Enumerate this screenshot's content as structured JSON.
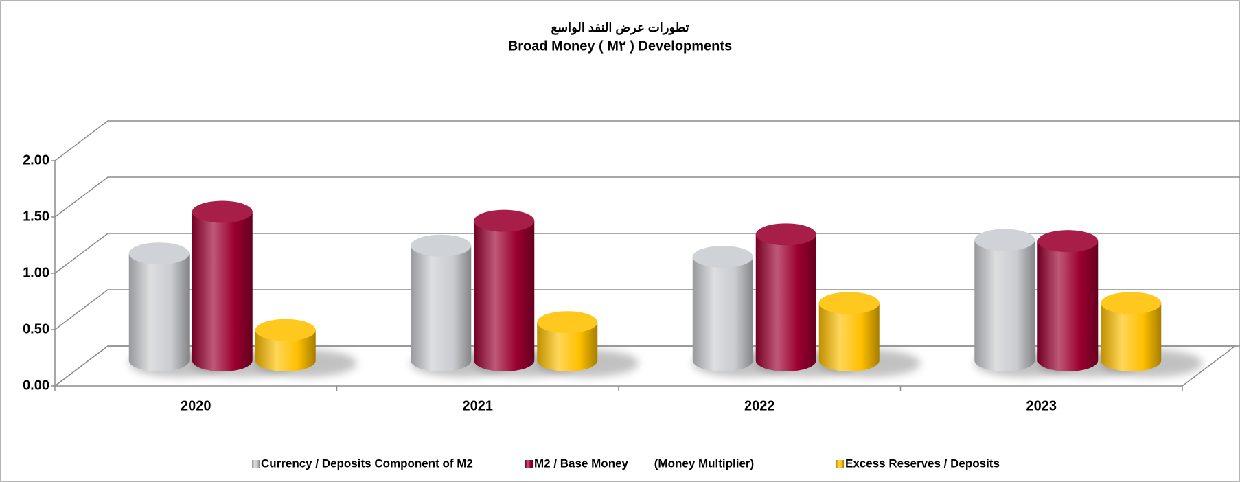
{
  "chart_data": {
    "type": "bar",
    "title": "تطورات عرض النقد الواسع",
    "subtitle": "Broad Money ( M٢ ) Developments",
    "categories": [
      "2020",
      "2021",
      "2022",
      "2023"
    ],
    "series": [
      {
        "name": "Currency / Deposits Component of M2",
        "color": "#c9ccd0",
        "values": [
          0.95,
          1.02,
          0.92,
          1.07
        ]
      },
      {
        "name": "M2 / Base Money        (Money Multiplier)",
        "color": "#9b0030",
        "values": [
          1.32,
          1.24,
          1.12,
          1.06
        ]
      },
      {
        "name": "Excess Reserves / Deposits",
        "color": "#ffc000",
        "values": [
          0.27,
          0.34,
          0.51,
          0.51
        ]
      }
    ],
    "ylim": [
      0,
      2
    ],
    "yticks": [
      {
        "value": 0,
        "label": "0.00"
      },
      {
        "value": 0.5,
        "label": "0.50"
      },
      {
        "value": 1,
        "label": "1.00"
      },
      {
        "value": 1.5,
        "label": "1.50"
      },
      {
        "value": 2,
        "label": "2.00"
      }
    ],
    "grid": true
  }
}
